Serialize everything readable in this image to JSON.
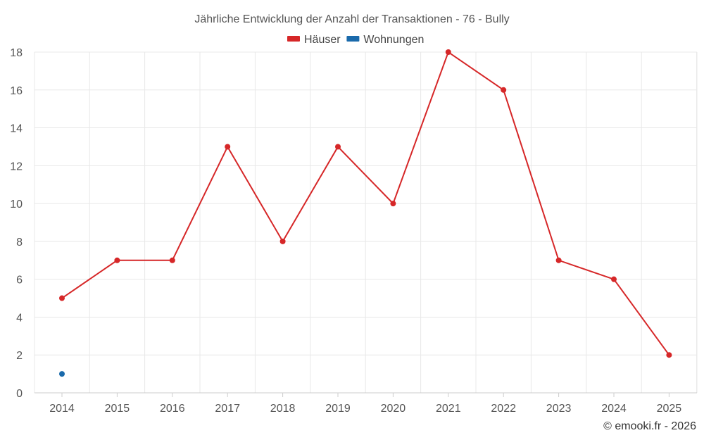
{
  "chart_data": {
    "type": "line",
    "title": "Jährliche Entwicklung der Anzahl der Transaktionen - 76 - Bully",
    "xlabel": "",
    "ylabel": "",
    "categories": [
      "2014",
      "2015",
      "2016",
      "2017",
      "2018",
      "2019",
      "2020",
      "2021",
      "2022",
      "2023",
      "2024",
      "2025"
    ],
    "ylim": [
      0,
      18
    ],
    "yticks": [
      0,
      2,
      4,
      6,
      8,
      10,
      12,
      14,
      16,
      18
    ],
    "grid": true,
    "legend_position": "top-center",
    "series": [
      {
        "name": "Häuser",
        "color": "#d62728",
        "values": [
          5,
          7,
          7,
          13,
          8,
          13,
          10,
          18,
          16,
          7,
          6,
          2
        ]
      },
      {
        "name": "Wohnungen",
        "color": "#1a6aab",
        "values": [
          1,
          null,
          null,
          null,
          null,
          null,
          null,
          null,
          null,
          null,
          null,
          null
        ]
      }
    ]
  },
  "credit": "© emooki.fr - 2026"
}
